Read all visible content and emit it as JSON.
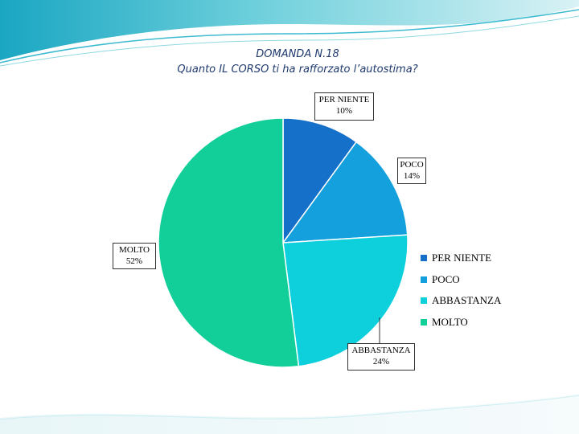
{
  "slide": {
    "title": "DOMANDA N.18",
    "subtitle": "Quanto IL CORSO ti ha rafforzato l’autostima?"
  },
  "colors": {
    "per_niente": "#1470c8",
    "poco": "#14a0dc",
    "abbastanza": "#0ed0dc",
    "molto": "#12cf9a",
    "decor_teal": "#1fb5c9",
    "decor_light": "#aee2ea"
  },
  "chart_data": {
    "type": "pie",
    "start_angle": "12 o'clock",
    "direction": "clockwise",
    "legend_position": "right",
    "slices": [
      {
        "label": "PER NIENTE",
        "value": 10,
        "value_label": "10%",
        "color": "#1470c8"
      },
      {
        "label": "POCO",
        "value": 14,
        "value_label": "14%",
        "color": "#14a0dc"
      },
      {
        "label": "ABBASTANZA",
        "value": 24,
        "value_label": "24%",
        "color": "#0ed0dc"
      },
      {
        "label": "MOLTO",
        "value": 52,
        "value_label": "52%",
        "color": "#12cf9a"
      }
    ]
  }
}
